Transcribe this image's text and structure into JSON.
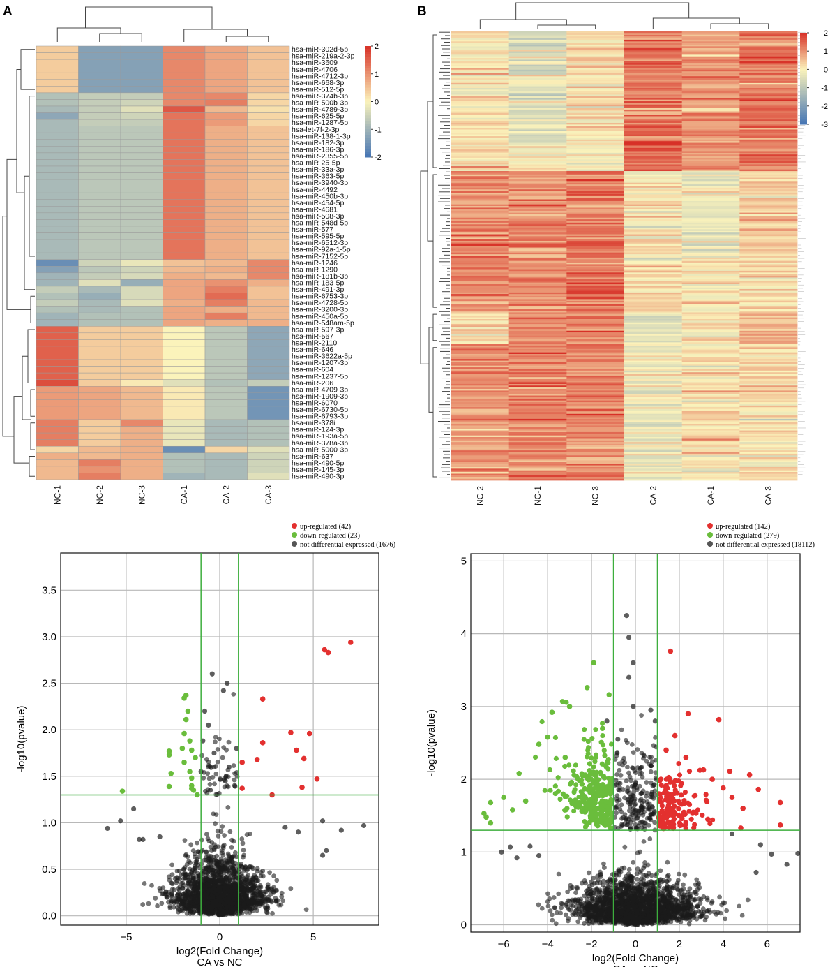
{
  "panels": {
    "A_label": "A",
    "B_label": "B"
  },
  "colors": {
    "up": "#e3302f",
    "down": "#6abd3c",
    "ns": "#1a1a1a",
    "threshold": "#3dae3d",
    "grid": "#b8b8b8",
    "heat_low": "#4575b4",
    "heat_mid": "#fbf3bb",
    "heat_high": "#d73027"
  },
  "chart_data": [
    {
      "id": "heatmap-A",
      "type": "heatmap",
      "title": "",
      "columns": [
        "NC-1",
        "NC-2",
        "NC-3",
        "CA-1",
        "CA-2",
        "CA-3"
      ],
      "rows": [
        "hsa-miR-302d-5p",
        "hsa-miR-219a-2-3p",
        "hsa-miR-3609",
        "hsa-miR-4706",
        "hsa-miR-4712-3p",
        "hsa-miR-668-3p",
        "hsa-miR-512-5p",
        "hsa-miR-374b-3p",
        "hsa-miR-500b-3p",
        "hsa-miR-4789-3p",
        "hsa-miR-625-5p",
        "hsa-miR-1287-5p",
        "hsa-let-7f-2-3p",
        "hsa-miR-138-1-3p",
        "hsa-miR-182-3p",
        "hsa-miR-186-3p",
        "hsa-miR-2355-5p",
        "hsa-miR-25-5p",
        "hsa-miR-33a-3p",
        "hsa-miR-363-5p",
        "hsa-miR-3940-3p",
        "hsa-miR-4492",
        "hsa-miR-450b-3p",
        "hsa-miR-454-5p",
        "hsa-miR-4681",
        "hsa-miR-508-3p",
        "hsa-miR-548d-5p",
        "hsa-miR-577",
        "hsa-miR-595-5p",
        "hsa-miR-6512-3p",
        "hsa-miR-92a-1-5p",
        "hsa-miR-7152-5p",
        "hsa-miR-1246",
        "hsa-miR-1290",
        "hsa-miR-181b-3p",
        "hsa-miR-183-5p",
        "hsa-miR-491-3p",
        "hsa-miR-6753-3p",
        "hsa-miR-4728-5p",
        "hsa-miR-3200-3p",
        "hsa-miR-450a-5p",
        "hsa-miR-548am-5p",
        "hsa-miR-597-3p",
        "hsa-miR-567",
        "hsa-miR-2110",
        "hsa-miR-646",
        "hsa-miR-3622a-5p",
        "hsa-miR-1207-3p",
        "hsa-miR-604",
        "hsa-miR-1237-5p",
        "hsa-miR-206",
        "hsa-miR-4709-3p",
        "hsa-miR-1909-3p",
        "hsa-miR-6070",
        "hsa-miR-6730-5p",
        "hsa-miR-6793-3p",
        "hsa-miR-378i",
        "hsa-miR-124-3p",
        "hsa-miR-193a-5p",
        "hsa-miR-378a-3p",
        "hsa-miR-5000-3p",
        "hsa-miR-637",
        "hsa-miR-490-5p",
        "hsa-miR-145-3p",
        "hsa-miR-490-3p"
      ],
      "values": [
        [
          0.4,
          -1.3,
          -1.3,
          1.1,
          0.8,
          0.5
        ],
        [
          0.4,
          -1.3,
          -1.3,
          1.1,
          0.8,
          0.5
        ],
        [
          0.4,
          -1.3,
          -1.3,
          1.1,
          0.8,
          0.5
        ],
        [
          0.4,
          -1.3,
          -1.3,
          1.1,
          0.8,
          0.5
        ],
        [
          0.4,
          -1.3,
          -1.3,
          1.1,
          0.8,
          0.5
        ],
        [
          0.4,
          -1.3,
          -1.3,
          1.1,
          0.8,
          0.5
        ],
        [
          0.4,
          -1.3,
          -1.3,
          1.1,
          0.8,
          0.5
        ],
        [
          -0.8,
          -0.6,
          -0.6,
          1.1,
          1.1,
          0.3
        ],
        [
          -0.8,
          -0.6,
          -0.5,
          1.1,
          1.2,
          0.3
        ],
        [
          -0.9,
          -0.6,
          -0.3,
          1.6,
          0.6,
          0.2
        ],
        [
          -1.2,
          -0.6,
          -0.5,
          1.3,
          0.9,
          0.3
        ],
        [
          -0.9,
          -0.6,
          -0.6,
          1.3,
          0.9,
          0.3
        ],
        [
          -0.9,
          -0.7,
          -0.7,
          1.3,
          0.7,
          0.5
        ],
        [
          -0.9,
          -0.7,
          -0.7,
          1.3,
          0.7,
          0.5
        ],
        [
          -0.9,
          -0.7,
          -0.7,
          1.3,
          0.7,
          0.5
        ],
        [
          -0.9,
          -0.7,
          -0.7,
          1.3,
          0.7,
          0.5
        ],
        [
          -0.9,
          -0.7,
          -0.7,
          1.3,
          0.7,
          0.5
        ],
        [
          -0.9,
          -0.7,
          -0.7,
          1.3,
          0.7,
          0.5
        ],
        [
          -0.9,
          -0.7,
          -0.7,
          1.3,
          0.7,
          0.5
        ],
        [
          -0.9,
          -0.7,
          -0.7,
          1.3,
          0.7,
          0.5
        ],
        [
          -0.9,
          -0.7,
          -0.7,
          1.3,
          0.7,
          0.5
        ],
        [
          -0.9,
          -0.7,
          -0.7,
          1.3,
          0.7,
          0.5
        ],
        [
          -0.9,
          -0.7,
          -0.7,
          1.3,
          0.7,
          0.5
        ],
        [
          -0.9,
          -0.7,
          -0.7,
          1.3,
          0.7,
          0.5
        ],
        [
          -0.9,
          -0.7,
          -0.7,
          1.3,
          0.7,
          0.5
        ],
        [
          -0.9,
          -0.7,
          -0.7,
          1.3,
          0.7,
          0.5
        ],
        [
          -0.9,
          -0.7,
          -0.7,
          1.3,
          0.7,
          0.5
        ],
        [
          -0.9,
          -0.7,
          -0.7,
          1.3,
          0.7,
          0.5
        ],
        [
          -0.9,
          -0.7,
          -0.7,
          1.3,
          0.7,
          0.5
        ],
        [
          -0.9,
          -0.7,
          -0.7,
          1.3,
          0.7,
          0.5
        ],
        [
          -0.9,
          -0.7,
          -0.7,
          1.3,
          0.7,
          0.5
        ],
        [
          -0.9,
          -0.7,
          -0.7,
          1.3,
          0.7,
          0.5
        ],
        [
          -1.6,
          -0.5,
          -0.2,
          0.5,
          0.6,
          1.1
        ],
        [
          -1.3,
          -0.7,
          -0.5,
          0.6,
          0.7,
          1.1
        ],
        [
          -1.0,
          -0.6,
          -0.4,
          0.7,
          0.6,
          1.1
        ],
        [
          -1.0,
          -0.3,
          -1.1,
          0.8,
          1.0,
          0.7
        ],
        [
          -0.6,
          -0.9,
          -0.4,
          0.8,
          1.2,
          0.5
        ],
        [
          -0.8,
          -1.1,
          -0.4,
          0.8,
          1.4,
          0.5
        ],
        [
          -0.6,
          -0.9,
          -0.3,
          0.7,
          1.2,
          0.6
        ],
        [
          -0.8,
          -0.9,
          -0.8,
          0.8,
          0.7,
          0.6
        ],
        [
          -1.0,
          -0.8,
          -0.8,
          0.8,
          1.2,
          0.6
        ],
        [
          -1.0,
          -0.8,
          -0.8,
          0.8,
          0.7,
          0.7
        ],
        [
          1.5,
          0.4,
          0.4,
          0.0,
          -0.7,
          -1.2
        ],
        [
          1.5,
          0.4,
          0.4,
          0.0,
          -0.7,
          -1.2
        ],
        [
          1.5,
          0.4,
          0.4,
          0.0,
          -0.7,
          -1.2
        ],
        [
          1.5,
          0.4,
          0.4,
          0.0,
          -0.7,
          -1.2
        ],
        [
          1.5,
          0.4,
          0.4,
          0.0,
          -0.7,
          -1.2
        ],
        [
          1.5,
          0.4,
          0.4,
          0.0,
          -0.7,
          -1.2
        ],
        [
          1.5,
          0.4,
          0.4,
          0.0,
          -0.7,
          -1.2
        ],
        [
          1.5,
          0.4,
          0.4,
          0.0,
          -0.7,
          -1.2
        ],
        [
          1.7,
          0.4,
          0.1,
          -0.3,
          -0.8,
          -0.6
        ],
        [
          0.9,
          0.8,
          0.6,
          0.1,
          -0.7,
          -1.5
        ],
        [
          0.9,
          0.8,
          0.6,
          0.1,
          -0.7,
          -1.5
        ],
        [
          0.9,
          0.8,
          0.6,
          0.1,
          -0.7,
          -1.5
        ],
        [
          0.9,
          0.8,
          0.6,
          0.1,
          -0.7,
          -1.5
        ],
        [
          0.9,
          0.8,
          0.6,
          0.1,
          -0.7,
          -1.5
        ],
        [
          1.2,
          0.4,
          1.1,
          -0.2,
          -0.9,
          -0.8
        ],
        [
          1.2,
          0.4,
          0.7,
          -0.2,
          -0.9,
          -0.8
        ],
        [
          1.2,
          0.4,
          0.7,
          -0.2,
          -0.9,
          -0.8
        ],
        [
          1.2,
          0.4,
          0.7,
          -0.2,
          -0.9,
          -0.8
        ],
        [
          0.3,
          0.6,
          0.7,
          -1.6,
          0.3,
          -0.3
        ],
        [
          0.7,
          0.6,
          0.7,
          -0.8,
          -0.9,
          -0.5
        ],
        [
          0.6,
          1.2,
          0.7,
          -0.8,
          -0.9,
          -0.5
        ],
        [
          0.6,
          1.0,
          0.7,
          -0.8,
          -0.9,
          -0.5
        ],
        [
          0.6,
          1.2,
          0.7,
          -1.0,
          -0.9,
          -0.3
        ]
      ],
      "colorbar": {
        "min": -2,
        "max": 2,
        "ticks": [
          "2",
          "1",
          "0",
          "-1",
          "-2"
        ]
      }
    },
    {
      "id": "heatmap-B",
      "type": "heatmap",
      "title": "",
      "columns": [
        "NC-2",
        "NC-1",
        "NC-3",
        "CA-2",
        "CA-1",
        "CA-3"
      ],
      "row_blocks": [
        {
          "rows": 60,
          "values": [
            0.1,
            -0.5,
            0.2,
            1.2,
            0.9,
            1.2
          ]
        },
        {
          "rows": 24,
          "values": [
            0.1,
            -0.2,
            -0.1,
            1.5,
            0.9,
            1.2
          ]
        },
        {
          "rows": 50,
          "values": [
            1.1,
            1.0,
            1.3,
            0.1,
            -0.2,
            0.4
          ]
        },
        {
          "rows": 34,
          "values": [
            1.1,
            1.0,
            1.3,
            0.3,
            0.1,
            0.3
          ]
        },
        {
          "rows": 20,
          "values": [
            0.3,
            1.1,
            1.2,
            -0.4,
            0.0,
            0.6
          ]
        },
        {
          "rows": 82,
          "values": [
            1.0,
            1.1,
            1.1,
            -0.2,
            0.1,
            0.2
          ]
        }
      ],
      "colorbar": {
        "min": -3,
        "max": 2,
        "ticks": [
          "2",
          "1",
          "0",
          "-1",
          "-2",
          "-3"
        ]
      }
    },
    {
      "id": "volcano-A",
      "type": "scatter",
      "title": "",
      "xlabel": "log2(Fold Change)",
      "xlabel2": "CA vs NC",
      "ylabel": "-log10(pvalue)",
      "xlim": [
        -8.5,
        8.5
      ],
      "ylim": [
        -0.1,
        3.9
      ],
      "xticks": [
        -5,
        0,
        5
      ],
      "yticks": [
        0.0,
        0.5,
        1.0,
        1.5,
        2.0,
        2.5,
        3.0,
        3.5
      ],
      "threshold": {
        "x": [
          -1,
          1
        ],
        "y": 1.3
      },
      "legend": [
        {
          "label": "up-regulated (42)",
          "class": "up"
        },
        {
          "label": "down-regulated (23)",
          "class": "down"
        },
        {
          "label": "not differential expressed (1676)",
          "class": "ns"
        }
      ],
      "up_points": [
        [
          7.0,
          2.94
        ],
        [
          5.6,
          2.86
        ],
        [
          5.8,
          2.83
        ],
        [
          2.3,
          2.33
        ],
        [
          3.8,
          1.97
        ],
        [
          4.8,
          1.96
        ],
        [
          2.3,
          1.86
        ],
        [
          4.1,
          1.78
        ],
        [
          4.5,
          1.69
        ],
        [
          2.0,
          1.68
        ],
        [
          1.2,
          1.65
        ],
        [
          5.2,
          1.47
        ],
        [
          4.4,
          1.38
        ],
        [
          1.2,
          1.37
        ],
        [
          2.8,
          1.3
        ]
      ],
      "down_points": [
        [
          -1.8,
          2.37
        ],
        [
          -1.9,
          2.34
        ],
        [
          -1.7,
          2.2
        ],
        [
          -1.8,
          2.11
        ],
        [
          -1.9,
          1.96
        ],
        [
          -1.6,
          1.88
        ],
        [
          -2.0,
          1.8
        ],
        [
          -1.5,
          1.78
        ],
        [
          -2.7,
          1.77
        ],
        [
          -2.7,
          1.73
        ],
        [
          -1.3,
          1.7
        ],
        [
          -1.9,
          1.65
        ],
        [
          -2.6,
          1.53
        ],
        [
          -1.6,
          1.55
        ],
        [
          -1.5,
          1.48
        ],
        [
          -1.5,
          1.4
        ],
        [
          -2.7,
          1.39
        ],
        [
          -1.5,
          1.37
        ],
        [
          -1.4,
          1.35
        ],
        [
          -5.2,
          1.34
        ],
        [
          -1.2,
          1.3
        ]
      ],
      "ns_points": [
        [
          -0.4,
          2.6
        ],
        [
          0.4,
          2.5
        ],
        [
          0.2,
          2.42
        ],
        [
          -0.8,
          2.2
        ],
        [
          -0.6,
          2.05
        ],
        [
          -0.9,
          1.88
        ],
        [
          0.9,
          1.8
        ],
        [
          -0.3,
          1.75
        ],
        [
          0.5,
          1.6
        ],
        [
          -1.0,
          1.55
        ],
        [
          0.3,
          1.45
        ],
        [
          0.8,
          1.4
        ],
        [
          -0.5,
          1.35
        ],
        [
          -6.0,
          0.94
        ],
        [
          -5.3,
          1.02
        ],
        [
          -4.1,
          0.82
        ],
        [
          -4.3,
          0.82
        ],
        [
          -4.6,
          1.15
        ],
        [
          5.5,
          1.02
        ],
        [
          7.7,
          0.97
        ],
        [
          6.5,
          0.92
        ],
        [
          5.7,
          0.7
        ],
        [
          5.5,
          0.65
        ],
        [
          -3.2,
          0.85
        ],
        [
          3.5,
          0.95
        ],
        [
          4.2,
          0.9
        ]
      ],
      "ns_cloud": {
        "count": 1676,
        "x_spread": 2.2,
        "y_max": 1.3
      }
    },
    {
      "id": "volcano-B",
      "type": "scatter",
      "title": "",
      "xlabel": "log2(Fold Change)",
      "xlabel2": "CA vs NC",
      "ylabel": "-log10(pvalue)",
      "xlim": [
        -7.5,
        7.5
      ],
      "ylim": [
        -0.1,
        5.1
      ],
      "xticks": [
        -6,
        -4,
        -2,
        0,
        2,
        4,
        6
      ],
      "yticks": [
        0,
        1,
        2,
        3,
        4,
        5
      ],
      "threshold": {
        "x": [
          -1,
          1
        ],
        "y": 1.3
      },
      "legend": [
        {
          "label": "up-regulated (142)",
          "class": "up"
        },
        {
          "label": "down-regulated (279)",
          "class": "down"
        },
        {
          "label": "not differential expressed (18112)",
          "class": "ns"
        }
      ],
      "up_points": [
        [
          1.6,
          3.76
        ],
        [
          3.8,
          2.82
        ],
        [
          2.4,
          2.9
        ],
        [
          1.8,
          2.6
        ],
        [
          1.4,
          2.4
        ],
        [
          2.3,
          2.3
        ],
        [
          3.1,
          2.13
        ],
        [
          4.3,
          2.11
        ],
        [
          5.2,
          2.06
        ],
        [
          3.5,
          2.0
        ],
        [
          4.0,
          1.88
        ],
        [
          5.6,
          1.86
        ],
        [
          6.6,
          1.68
        ],
        [
          4.4,
          1.75
        ],
        [
          4.9,
          1.6
        ],
        [
          6.6,
          1.37
        ],
        [
          3.3,
          1.45
        ],
        [
          4.8,
          1.33
        ]
      ],
      "down_points": [
        [
          -1.9,
          3.6
        ],
        [
          -2.2,
          3.26
        ],
        [
          -1.2,
          3.16
        ],
        [
          -3.0,
          3.0
        ],
        [
          -3.8,
          2.92
        ],
        [
          -4.0,
          2.58
        ],
        [
          -4.4,
          2.48
        ],
        [
          -5.3,
          2.08
        ],
        [
          -6.0,
          1.75
        ],
        [
          -6.6,
          1.68
        ],
        [
          -6.8,
          1.48
        ],
        [
          -6.6,
          1.4
        ],
        [
          -6.9,
          1.53
        ],
        [
          -5.6,
          1.58
        ],
        [
          -5.0,
          1.7
        ],
        [
          -3.2,
          2.3
        ],
        [
          -2.4,
          2.05
        ],
        [
          -1.5,
          2.7
        ]
      ],
      "ns_points": [
        [
          -0.4,
          4.25
        ],
        [
          -0.3,
          3.95
        ],
        [
          -0.1,
          3.6
        ],
        [
          -0.3,
          3.4
        ],
        [
          -0.1,
          3.0
        ],
        [
          0.7,
          2.95
        ],
        [
          0.9,
          2.8
        ],
        [
          -1.3,
          2.8
        ],
        [
          -0.8,
          2.55
        ],
        [
          -5.7,
          1.07
        ],
        [
          -5.4,
          0.92
        ],
        [
          -4.8,
          1.08
        ],
        [
          -6.1,
          1.0
        ],
        [
          5.7,
          1.1
        ],
        [
          6.2,
          0.97
        ],
        [
          7.4,
          0.98
        ],
        [
          6.9,
          0.83
        ],
        [
          5.5,
          0.72
        ],
        [
          4.4,
          1.25
        ],
        [
          -4.4,
          0.95
        ]
      ],
      "ns_cloud": {
        "count": 18112,
        "x_spread": 2.6,
        "y_max": 1.3
      },
      "down_cloud": {
        "count": 279
      },
      "up_cloud": {
        "count": 142
      }
    }
  ]
}
